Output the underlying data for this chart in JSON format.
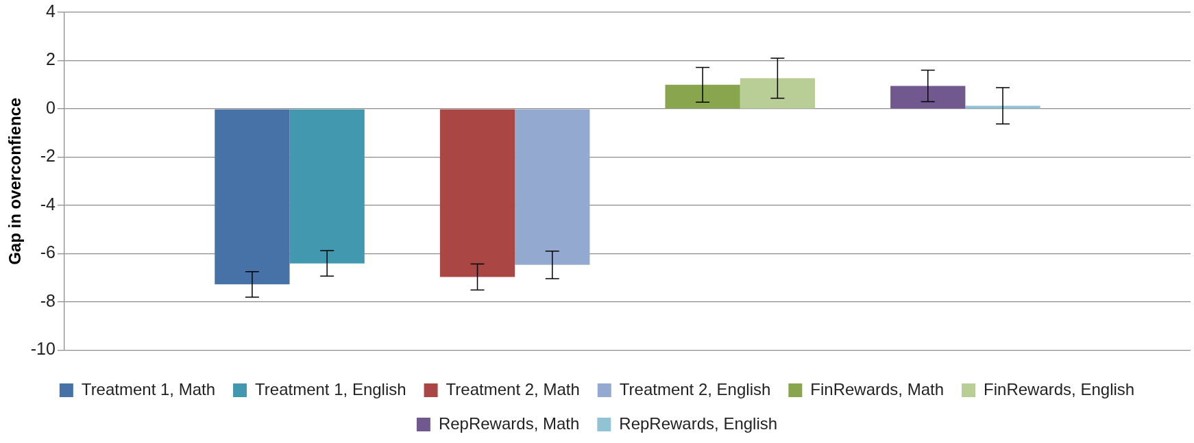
{
  "chart_data": {
    "type": "bar",
    "ylabel": "Gap in overconfience",
    "categories": [
      null,
      null,
      null,
      null,
      null,
      null
    ],
    "series": [
      {
        "name": "Treatment 1, Math",
        "color": "#4672a8",
        "values": [
          null,
          -7.27,
          null,
          null,
          null,
          null
        ],
        "errors": [
          null,
          0.53,
          null,
          null,
          null,
          null
        ]
      },
      {
        "name": "Treatment 1, English",
        "color": "#4198af",
        "values": [
          null,
          -6.4,
          null,
          null,
          null,
          null
        ],
        "errors": [
          null,
          0.53,
          null,
          null,
          null,
          null
        ]
      },
      {
        "name": "Treatment 2, Math",
        "color": "#aa4644",
        "values": [
          null,
          null,
          -6.96,
          null,
          null,
          null
        ],
        "errors": [
          null,
          null,
          0.54,
          null,
          null,
          null
        ]
      },
      {
        "name": "Treatment 2, English",
        "color": "#93a9cf",
        "values": [
          null,
          null,
          -6.46,
          null,
          null,
          null
        ],
        "errors": [
          null,
          null,
          0.57,
          null,
          null,
          null
        ]
      },
      {
        "name": "FinRewards, Math",
        "color": "#89a54e",
        "values": [
          null,
          null,
          null,
          1.0,
          null,
          null
        ],
        "errors": [
          null,
          null,
          null,
          0.72,
          null,
          null
        ]
      },
      {
        "name": "FinRewards, English",
        "color": "#b9cd96",
        "values": [
          null,
          null,
          null,
          1.27,
          null,
          null
        ],
        "errors": [
          null,
          null,
          null,
          0.83,
          null,
          null
        ]
      },
      {
        "name": "RepRewards, Math",
        "color": "#71588f",
        "values": [
          null,
          null,
          null,
          null,
          0.95,
          null
        ],
        "errors": [
          null,
          null,
          null,
          null,
          0.65,
          null
        ]
      },
      {
        "name": "RepRewards, English",
        "color": "#92c3d4",
        "values": [
          null,
          null,
          null,
          null,
          0.13,
          null
        ],
        "errors": [
          null,
          null,
          null,
          null,
          0.75,
          null
        ]
      }
    ],
    "ylim": [
      -10,
      4
    ],
    "yticks": [
      -10,
      -8,
      -6,
      -4,
      -2,
      0,
      2,
      4
    ],
    "grid": "y",
    "legend": "bottom"
  }
}
